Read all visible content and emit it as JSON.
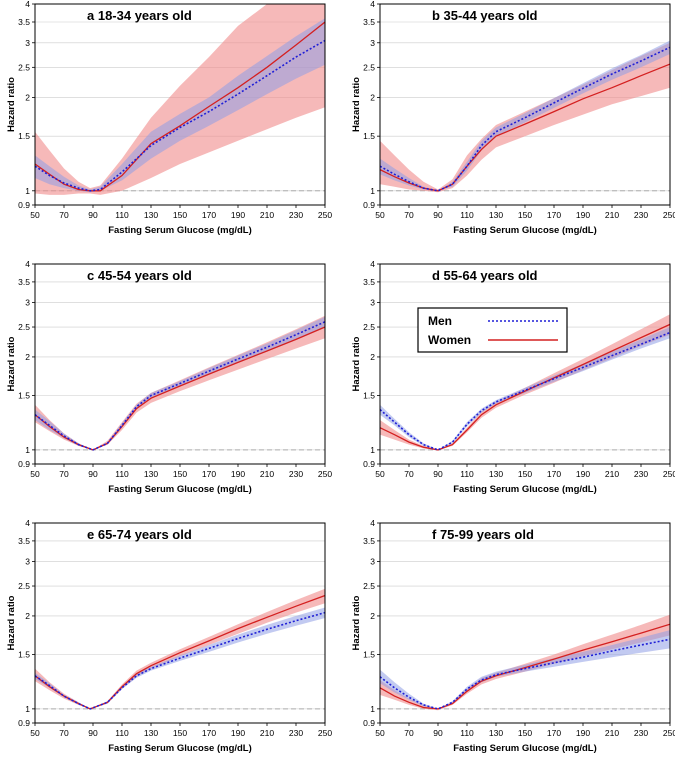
{
  "colors": {
    "men_line": "#1f1fd6",
    "men_band": "#8f9fe6",
    "women_line": "#d42020",
    "women_band": "#f08a8a",
    "grid": "#cccccc",
    "reference": "#aaaaaa"
  },
  "legend": {
    "panel": 3,
    "entries": [
      {
        "label": "Men",
        "color": "#1f1fd6",
        "dash": "2,2"
      },
      {
        "label": "Women",
        "color": "#d42020",
        "dash": ""
      }
    ]
  },
  "chart_data": [
    {
      "type": "line",
      "title": "a 18-34 years old",
      "xlabel": "Fasting Serum Glucose (mg/dL)",
      "ylabel": "Hazard ratio",
      "xlim": [
        50,
        250
      ],
      "ylim": [
        0.9,
        4
      ],
      "yscale": "log",
      "xticks": [
        "50",
        "70",
        "90",
        "110",
        "130",
        "150",
        "170",
        "190",
        "210",
        "230",
        "250"
      ],
      "yticks": [
        "0.9",
        "1",
        "1.5",
        "2",
        "2.5",
        "3",
        "3.5",
        "4"
      ],
      "x": [
        50,
        60,
        70,
        80,
        88,
        95,
        110,
        130,
        150,
        170,
        190,
        210,
        230,
        250
      ],
      "series": [
        {
          "name": "Men",
          "y": [
            1.2,
            1.12,
            1.06,
            1.02,
            1.0,
            1.01,
            1.15,
            1.4,
            1.6,
            1.8,
            2.05,
            2.35,
            2.7,
            3.05
          ],
          "lower": [
            1.1,
            1.05,
            1.02,
            1.0,
            0.99,
            1.0,
            1.08,
            1.27,
            1.45,
            1.62,
            1.82,
            2.05,
            2.3,
            2.55
          ],
          "upper": [
            1.3,
            1.2,
            1.11,
            1.04,
            1.01,
            1.03,
            1.22,
            1.55,
            1.77,
            2.0,
            2.35,
            2.72,
            3.15,
            3.6
          ]
        },
        {
          "name": "Women",
          "y": [
            1.22,
            1.13,
            1.05,
            1.01,
            1.0,
            1.0,
            1.12,
            1.42,
            1.62,
            1.87,
            2.15,
            2.5,
            2.95,
            3.5
          ],
          "lower": [
            0.98,
            0.97,
            0.97,
            0.98,
            0.98,
            0.97,
            1.0,
            1.1,
            1.22,
            1.33,
            1.45,
            1.58,
            1.72,
            1.86
          ],
          "upper": [
            1.55,
            1.35,
            1.18,
            1.07,
            1.02,
            1.04,
            1.27,
            1.72,
            2.18,
            2.7,
            3.4,
            4.0,
            4.0,
            4.0
          ]
        }
      ]
    },
    {
      "type": "line",
      "title": "b 35-44 years old",
      "xlabel": "Fasting Serum Glucose (mg/dL)",
      "ylabel": "Hazard ratio",
      "xlim": [
        50,
        250
      ],
      "ylim": [
        0.9,
        4
      ],
      "yscale": "log",
      "xticks": [
        "50",
        "70",
        "90",
        "110",
        "130",
        "150",
        "170",
        "190",
        "210",
        "230",
        "250"
      ],
      "yticks": [
        "0.9",
        "1",
        "1.5",
        "2",
        "2.5",
        "3",
        "3.5",
        "4"
      ],
      "x": [
        50,
        60,
        70,
        80,
        90,
        100,
        110,
        120,
        130,
        150,
        170,
        190,
        210,
        230,
        250
      ],
      "series": [
        {
          "name": "Men",
          "y": [
            1.2,
            1.13,
            1.07,
            1.02,
            1.0,
            1.05,
            1.2,
            1.4,
            1.55,
            1.72,
            1.92,
            2.14,
            2.38,
            2.62,
            2.9
          ],
          "lower": [
            1.13,
            1.08,
            1.04,
            1.01,
            1.0,
            1.03,
            1.16,
            1.35,
            1.5,
            1.66,
            1.85,
            2.06,
            2.28,
            2.5,
            2.76
          ],
          "upper": [
            1.27,
            1.18,
            1.1,
            1.03,
            1.0,
            1.07,
            1.24,
            1.45,
            1.6,
            1.78,
            1.99,
            2.22,
            2.48,
            2.74,
            3.05
          ]
        },
        {
          "name": "Women",
          "y": [
            1.17,
            1.11,
            1.06,
            1.02,
            1.0,
            1.05,
            1.2,
            1.36,
            1.5,
            1.64,
            1.8,
            1.98,
            2.15,
            2.35,
            2.56
          ],
          "lower": [
            1.05,
            1.03,
            1.01,
            1.0,
            0.99,
            1.02,
            1.12,
            1.26,
            1.38,
            1.5,
            1.63,
            1.76,
            1.9,
            2.02,
            2.15
          ],
          "upper": [
            1.45,
            1.3,
            1.17,
            1.07,
            1.01,
            1.09,
            1.3,
            1.47,
            1.63,
            1.8,
            1.99,
            2.2,
            2.45,
            2.72,
            3.0
          ]
        }
      ]
    },
    {
      "type": "line",
      "title": "c 45-54 years old",
      "xlabel": "Fasting Serum Glucose (mg/dL)",
      "ylabel": "Hazard ratio",
      "xlim": [
        50,
        250
      ],
      "ylim": [
        0.9,
        4
      ],
      "yscale": "log",
      "xticks": [
        "50",
        "70",
        "90",
        "110",
        "130",
        "150",
        "170",
        "190",
        "210",
        "230",
        "250"
      ],
      "yticks": [
        "0.9",
        "1",
        "1.5",
        "2",
        "2.5",
        "3",
        "3.5",
        "4"
      ],
      "x": [
        50,
        60,
        70,
        80,
        90,
        100,
        110,
        120,
        130,
        150,
        170,
        190,
        210,
        230,
        250
      ],
      "series": [
        {
          "name": "Men",
          "y": [
            1.3,
            1.2,
            1.11,
            1.04,
            1.0,
            1.05,
            1.2,
            1.38,
            1.5,
            1.64,
            1.8,
            1.97,
            2.15,
            2.36,
            2.6
          ],
          "lower": [
            1.25,
            1.16,
            1.09,
            1.03,
            1.0,
            1.04,
            1.18,
            1.36,
            1.47,
            1.61,
            1.76,
            1.92,
            2.09,
            2.28,
            2.5
          ],
          "upper": [
            1.35,
            1.24,
            1.13,
            1.05,
            1.0,
            1.06,
            1.22,
            1.4,
            1.53,
            1.67,
            1.84,
            2.02,
            2.21,
            2.44,
            2.7
          ]
        },
        {
          "name": "Women",
          "y": [
            1.3,
            1.19,
            1.1,
            1.04,
            1.0,
            1.05,
            1.19,
            1.36,
            1.47,
            1.61,
            1.76,
            1.92,
            2.09,
            2.28,
            2.5
          ],
          "lower": [
            1.23,
            1.15,
            1.08,
            1.03,
            1.0,
            1.04,
            1.16,
            1.32,
            1.42,
            1.55,
            1.68,
            1.82,
            1.97,
            2.13,
            2.3
          ],
          "upper": [
            1.4,
            1.25,
            1.13,
            1.05,
            1.0,
            1.07,
            1.23,
            1.41,
            1.53,
            1.68,
            1.85,
            2.03,
            2.23,
            2.46,
            2.72
          ]
        }
      ]
    },
    {
      "type": "line",
      "title": "d 55-64 years old",
      "xlabel": "Fasting Serum Glucose (mg/dL)",
      "ylabel": "Hazard ratio",
      "xlim": [
        50,
        250
      ],
      "ylim": [
        0.9,
        4
      ],
      "yscale": "log",
      "xticks": [
        "50",
        "70",
        "90",
        "110",
        "130",
        "150",
        "170",
        "190",
        "210",
        "230",
        "250"
      ],
      "yticks": [
        "0.9",
        "1",
        "1.5",
        "2",
        "2.5",
        "3",
        "3.5",
        "4"
      ],
      "x": [
        50,
        60,
        70,
        80,
        90,
        100,
        110,
        120,
        130,
        150,
        170,
        190,
        210,
        230,
        250
      ],
      "series": [
        {
          "name": "Men",
          "y": [
            1.35,
            1.23,
            1.12,
            1.04,
            1.0,
            1.06,
            1.21,
            1.34,
            1.43,
            1.56,
            1.7,
            1.85,
            2.02,
            2.2,
            2.4
          ],
          "lower": [
            1.3,
            1.2,
            1.1,
            1.03,
            1.0,
            1.05,
            1.19,
            1.32,
            1.41,
            1.53,
            1.66,
            1.8,
            1.96,
            2.13,
            2.3
          ],
          "upper": [
            1.4,
            1.26,
            1.14,
            1.05,
            1.0,
            1.07,
            1.23,
            1.36,
            1.45,
            1.59,
            1.74,
            1.9,
            2.08,
            2.28,
            2.5
          ]
        },
        {
          "name": "Women",
          "y": [
            1.18,
            1.12,
            1.06,
            1.02,
            1.0,
            1.04,
            1.16,
            1.3,
            1.4,
            1.55,
            1.71,
            1.89,
            2.09,
            2.31,
            2.55
          ],
          "lower": [
            1.12,
            1.08,
            1.04,
            1.01,
            1.0,
            1.03,
            1.14,
            1.27,
            1.37,
            1.51,
            1.65,
            1.81,
            1.98,
            2.17,
            2.36
          ],
          "upper": [
            1.25,
            1.16,
            1.08,
            1.03,
            1.0,
            1.05,
            1.18,
            1.33,
            1.43,
            1.59,
            1.77,
            1.97,
            2.2,
            2.46,
            2.75
          ]
        }
      ]
    },
    {
      "type": "line",
      "title": "e 65-74 years old",
      "xlabel": "Fasting Serum Glucose (mg/dL)",
      "ylabel": "Hazard ratio",
      "xlim": [
        50,
        250
      ],
      "ylim": [
        0.9,
        4
      ],
      "yscale": "log",
      "xticks": [
        "50",
        "70",
        "90",
        "110",
        "130",
        "150",
        "170",
        "190",
        "210",
        "230",
        "250"
      ],
      "yticks": [
        "0.9",
        "1",
        "1.5",
        "2",
        "2.5",
        "3",
        "3.5",
        "4"
      ],
      "x": [
        50,
        60,
        70,
        80,
        88,
        100,
        110,
        120,
        130,
        150,
        170,
        190,
        210,
        230,
        250
      ],
      "series": [
        {
          "name": "Men",
          "y": [
            1.28,
            1.19,
            1.1,
            1.04,
            1.0,
            1.05,
            1.17,
            1.28,
            1.35,
            1.46,
            1.57,
            1.69,
            1.81,
            1.93,
            2.05
          ],
          "lower": [
            1.25,
            1.17,
            1.09,
            1.03,
            1.0,
            1.04,
            1.16,
            1.26,
            1.33,
            1.43,
            1.53,
            1.64,
            1.75,
            1.86,
            1.97
          ],
          "upper": [
            1.31,
            1.21,
            1.11,
            1.05,
            1.0,
            1.06,
            1.18,
            1.3,
            1.37,
            1.49,
            1.61,
            1.74,
            1.87,
            2.0,
            2.13
          ]
        },
        {
          "name": "Women",
          "y": [
            1.28,
            1.18,
            1.1,
            1.04,
            1.0,
            1.05,
            1.18,
            1.3,
            1.38,
            1.52,
            1.66,
            1.82,
            1.98,
            2.15,
            2.33
          ],
          "lower": [
            1.23,
            1.15,
            1.08,
            1.03,
            1.0,
            1.04,
            1.16,
            1.27,
            1.35,
            1.48,
            1.61,
            1.75,
            1.9,
            2.05,
            2.2
          ],
          "upper": [
            1.35,
            1.22,
            1.12,
            1.05,
            1.0,
            1.06,
            1.2,
            1.33,
            1.41,
            1.56,
            1.71,
            1.88,
            2.06,
            2.25,
            2.45
          ]
        }
      ]
    },
    {
      "type": "line",
      "title": "f 75-99 years old",
      "xlabel": "Fasting Serum Glucose (mg/dL)",
      "ylabel": "Hazard ratio",
      "xlim": [
        50,
        250
      ],
      "ylim": [
        0.9,
        4
      ],
      "yscale": "log",
      "xticks": [
        "50",
        "70",
        "90",
        "110",
        "130",
        "150",
        "170",
        "190",
        "210",
        "230",
        "250"
      ],
      "yticks": [
        "0.9",
        "1",
        "1.5",
        "2",
        "2.5",
        "3",
        "3.5",
        "4"
      ],
      "x": [
        50,
        60,
        70,
        80,
        90,
        100,
        110,
        120,
        130,
        150,
        170,
        190,
        210,
        230,
        250
      ],
      "series": [
        {
          "name": "Men",
          "y": [
            1.27,
            1.17,
            1.09,
            1.03,
            1.0,
            1.05,
            1.16,
            1.24,
            1.29,
            1.35,
            1.41,
            1.47,
            1.54,
            1.61,
            1.68
          ],
          "lower": [
            1.21,
            1.13,
            1.07,
            1.02,
            1.0,
            1.04,
            1.14,
            1.22,
            1.27,
            1.32,
            1.37,
            1.42,
            1.47,
            1.52,
            1.57
          ],
          "upper": [
            1.34,
            1.22,
            1.12,
            1.04,
            1.0,
            1.06,
            1.18,
            1.27,
            1.32,
            1.39,
            1.46,
            1.53,
            1.61,
            1.7,
            1.8
          ]
        },
        {
          "name": "Women",
          "y": [
            1.17,
            1.1,
            1.05,
            1.01,
            1.0,
            1.04,
            1.14,
            1.23,
            1.28,
            1.36,
            1.45,
            1.55,
            1.65,
            1.76,
            1.88
          ],
          "lower": [
            1.11,
            1.07,
            1.03,
            1.0,
            0.99,
            1.03,
            1.12,
            1.2,
            1.25,
            1.32,
            1.4,
            1.48,
            1.56,
            1.64,
            1.73
          ],
          "upper": [
            1.24,
            1.15,
            1.08,
            1.03,
            1.0,
            1.05,
            1.16,
            1.26,
            1.31,
            1.4,
            1.5,
            1.62,
            1.74,
            1.87,
            2.02
          ]
        }
      ]
    }
  ]
}
